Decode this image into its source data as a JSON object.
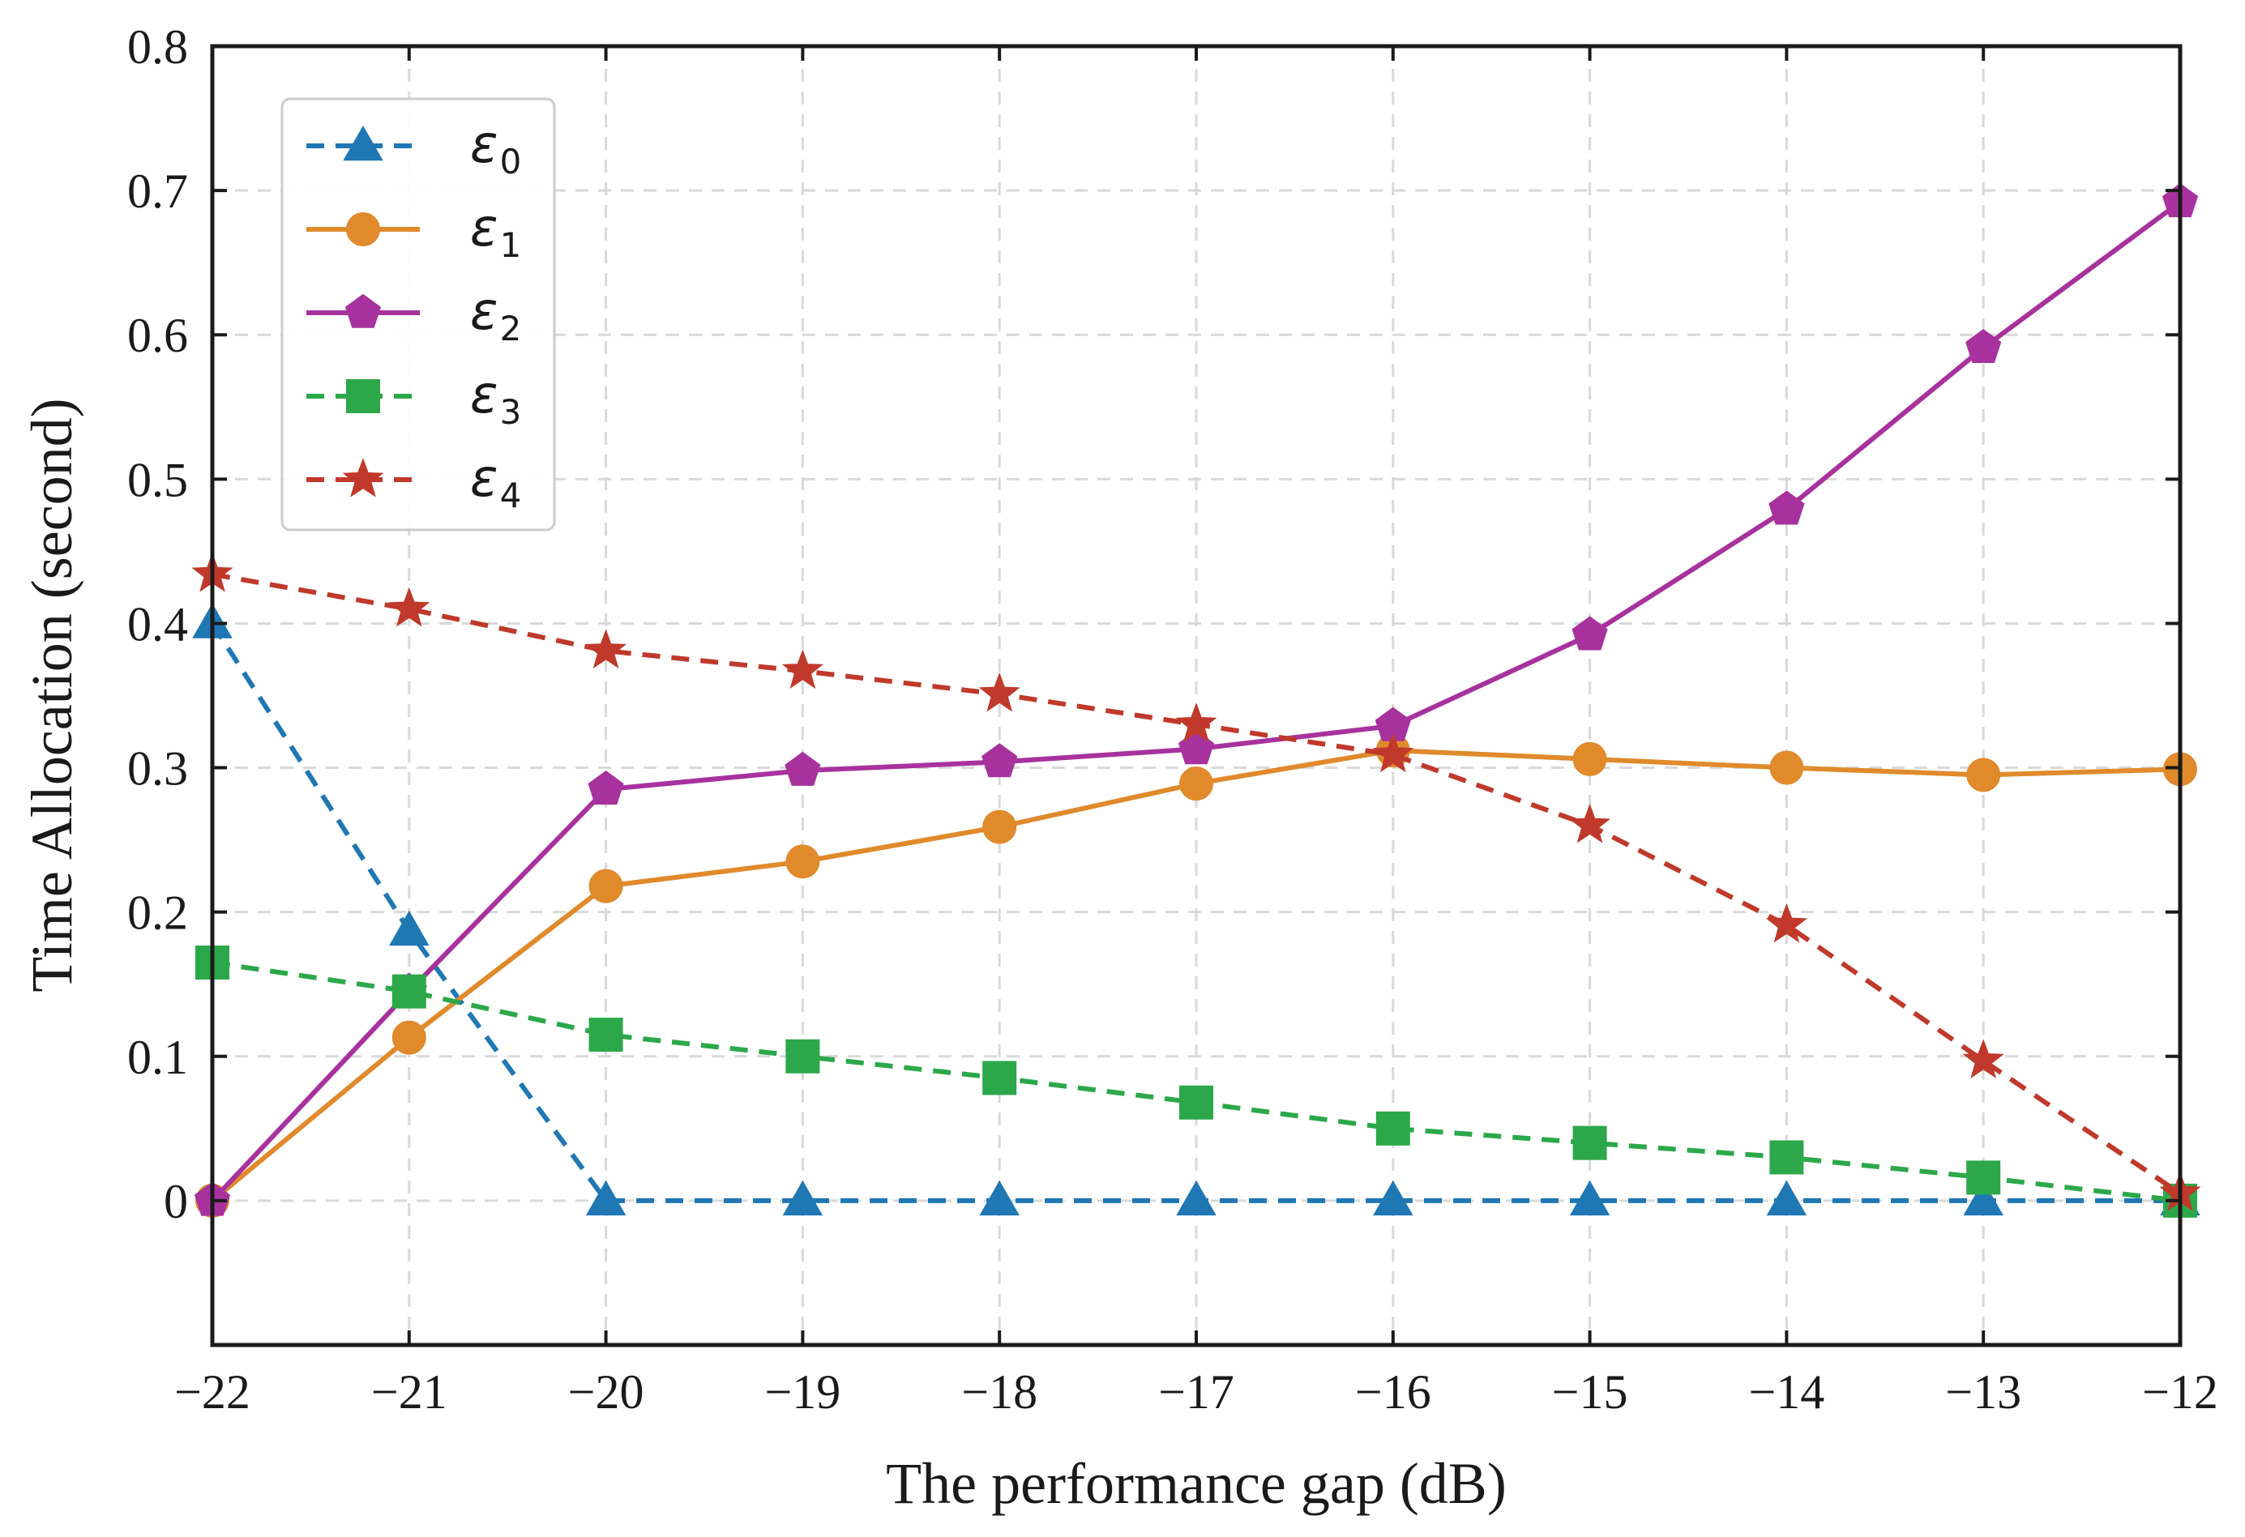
{
  "chart_data": {
    "type": "line",
    "title": "",
    "xlabel": "The performance gap (dB)",
    "ylabel": "Time Allocation (second)",
    "xlim": [
      -22,
      -12
    ],
    "ylim": [
      -0.1,
      0.8
    ],
    "x_ticks": [
      -22,
      -21,
      -20,
      -19,
      -18,
      -17,
      -16,
      -15,
      -14,
      -13,
      -12
    ],
    "x_tick_labels": [
      "−22",
      "−21",
      "−20",
      "−19",
      "−18",
      "−17",
      "−16",
      "−15",
      "−14",
      "−13",
      "−12"
    ],
    "y_ticks": [
      0,
      0.1,
      0.2,
      0.3,
      0.4,
      0.5,
      0.6,
      0.7,
      0.8
    ],
    "y_tick_labels": [
      "0",
      "0.1",
      "0.2",
      "0.3",
      "0.4",
      "0.5",
      "0.6",
      "0.7",
      "0.8"
    ],
    "grid": true,
    "legend_position": "top-left",
    "x": [
      -22,
      -21,
      -20,
      -19,
      -18,
      -17,
      -16,
      -15,
      -14,
      -13,
      -12
    ],
    "series": [
      {
        "name": "ε",
        "sub": "0",
        "color": "#1f77b4",
        "linestyle": "dashed",
        "marker": "triangle",
        "values": [
          0.4,
          0.187,
          0,
          0,
          0,
          0,
          0,
          0,
          0,
          0,
          0
        ]
      },
      {
        "name": "ε",
        "sub": "1",
        "color": "#e08a2c",
        "linestyle": "solid",
        "marker": "circle",
        "values": [
          0,
          0.113,
          0.218,
          0.235,
          0.259,
          0.289,
          0.312,
          0.306,
          0.3,
          0.295,
          0.299
        ]
      },
      {
        "name": "ε",
        "sub": "2",
        "color": "#a8329d",
        "linestyle": "solid",
        "marker": "pentagon",
        "values": [
          0,
          0.145,
          0.285,
          0.298,
          0.304,
          0.313,
          0.329,
          0.392,
          0.479,
          0.591,
          0.692
        ]
      },
      {
        "name": "ε",
        "sub": "3",
        "color": "#2ca84a",
        "linestyle": "dashed",
        "marker": "square",
        "values": [
          0.165,
          0.145,
          0.115,
          0.1,
          0.085,
          0.068,
          0.05,
          0.04,
          0.03,
          0.016,
          0
        ]
      },
      {
        "name": "ε",
        "sub": "4",
        "color": "#c0392b",
        "linestyle": "dashed",
        "marker": "star",
        "values": [
          0.434,
          0.41,
          0.381,
          0.367,
          0.351,
          0.33,
          0.309,
          0.26,
          0.191,
          0.097,
          0.005
        ]
      }
    ]
  }
}
